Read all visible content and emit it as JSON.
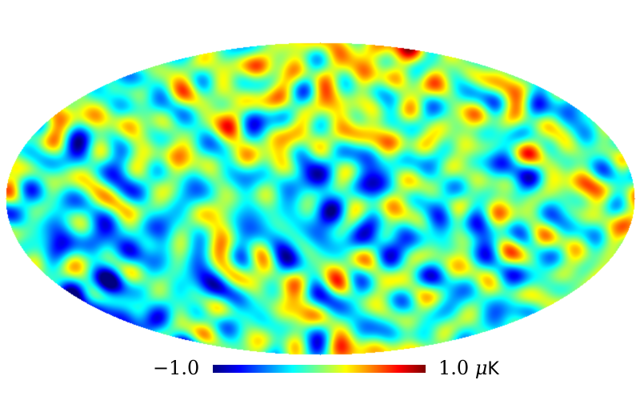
{
  "map": {
    "projection": "mollweide",
    "colormap": "jet",
    "colormap_stops": [
      "#00007f",
      "#0000ff",
      "#007fff",
      "#00ffff",
      "#7fff7f",
      "#ffff00",
      "#ff7f00",
      "#ff0000",
      "#7f0000"
    ]
  },
  "colorbar": {
    "min_label": "−1.0",
    "max_label": "1.0",
    "unit_prefix": "μ",
    "unit": "K"
  }
}
